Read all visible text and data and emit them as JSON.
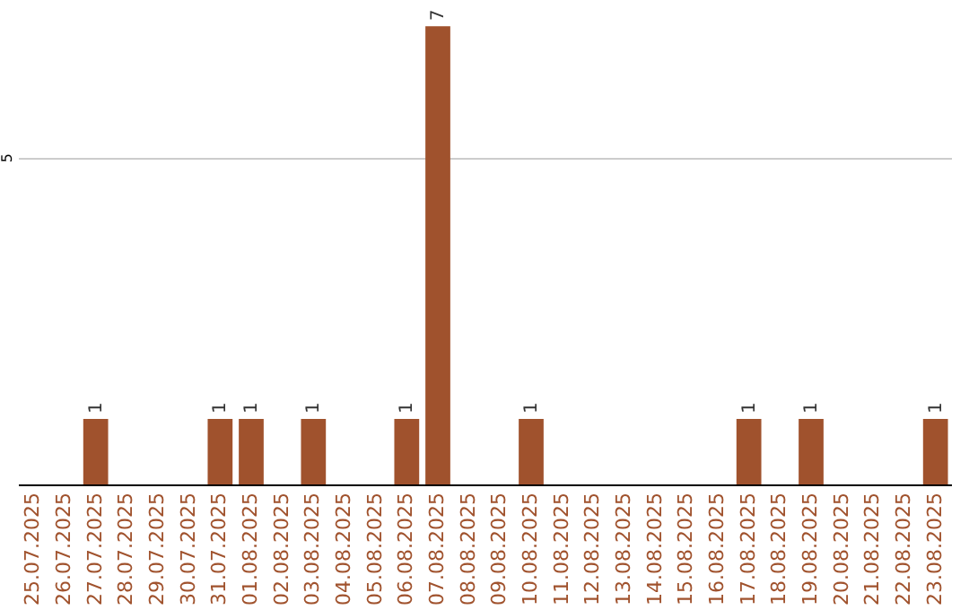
{
  "chart_data": {
    "type": "bar",
    "categories": [
      "25.07.2025",
      "26.07.2025",
      "27.07.2025",
      "28.07.2025",
      "29.07.2025",
      "30.07.2025",
      "31.07.2025",
      "01.08.2025",
      "02.08.2025",
      "03.08.2025",
      "04.08.2025",
      "05.08.2025",
      "06.08.2025",
      "07.08.2025",
      "08.08.2025",
      "09.08.2025",
      "10.08.2025",
      "11.08.2025",
      "12.08.2025",
      "13.08.2025",
      "14.08.2025",
      "15.08.2025",
      "16.08.2025",
      "17.08.2025",
      "18.08.2025",
      "19.08.2025",
      "20.08.2025",
      "21.08.2025",
      "22.08.2025",
      "23.08.2025"
    ],
    "values": [
      0,
      0,
      1,
      0,
      0,
      0,
      1,
      1,
      0,
      1,
      0,
      0,
      1,
      7,
      0,
      0,
      1,
      0,
      0,
      0,
      0,
      0,
      0,
      1,
      0,
      1,
      0,
      0,
      0,
      1
    ],
    "color": "#a0522d",
    "value_labels": [
      null,
      null,
      "1",
      null,
      null,
      null,
      "1",
      "1",
      null,
      "1",
      null,
      null,
      "1",
      "7",
      null,
      null,
      "1",
      null,
      null,
      null,
      null,
      null,
      null,
      "1",
      null,
      "1",
      null,
      null,
      null,
      "1"
    ],
    "ylim": [
      0,
      7.4
    ],
    "yticks": [
      5
    ],
    "grid": "y"
  }
}
